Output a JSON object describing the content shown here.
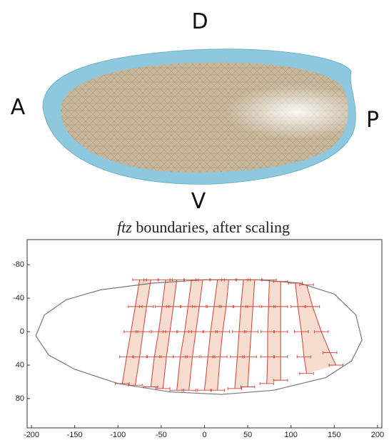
{
  "figure_labels": {
    "top": "D",
    "left": "A",
    "right": "P",
    "bottom": "V"
  },
  "chart_data": {
    "type": "boundaries",
    "title_italic": "ftz",
    "title_rest": " boundaries, after scaling",
    "xlim": [
      -205,
      205
    ],
    "ylim": [
      -110,
      115
    ],
    "y_inverted": true,
    "xticks": [
      -200,
      -150,
      -100,
      -50,
      0,
      50,
      100,
      150,
      200
    ],
    "yticks": [
      -80,
      -40,
      0,
      40,
      80
    ],
    "outline": {
      "color": "#777777",
      "x": [
        -195,
        -185,
        -160,
        -120,
        -60,
        0,
        60,
        110,
        150,
        175,
        182,
        170,
        140,
        80,
        20,
        -40,
        -100,
        -150,
        -180,
        -195
      ],
      "y": [
        5,
        -20,
        -38,
        -50,
        -58,
        -62,
        -62,
        -58,
        -45,
        -20,
        10,
        35,
        55,
        70,
        75,
        72,
        62,
        45,
        28,
        5
      ]
    },
    "color": "#d04038",
    "shade": "#f6ddcf",
    "xerr": 8,
    "series": [
      {
        "x": [
          -75,
          -80,
          -85,
          -90,
          -95
        ],
        "y": [
          -62,
          -30,
          0,
          30,
          62
        ]
      },
      {
        "x": [
          -62,
          -67,
          -71,
          -75,
          -80
        ],
        "y": [
          -62,
          -30,
          0,
          30,
          64
        ]
      },
      {
        "x": [
          -45,
          -49,
          -53,
          -58,
          -62
        ],
        "y": [
          -62,
          -30,
          0,
          30,
          66
        ]
      },
      {
        "x": [
          -32,
          -36,
          -40,
          -44,
          -48
        ],
        "y": [
          -62,
          -30,
          0,
          30,
          68
        ]
      },
      {
        "x": [
          -15,
          -19,
          -23,
          -28,
          -32
        ],
        "y": [
          -62,
          -30,
          0,
          30,
          70
        ]
      },
      {
        "x": [
          -2,
          -6,
          -10,
          -14,
          -18
        ],
        "y": [
          -62,
          -30,
          0,
          30,
          70
        ]
      },
      {
        "x": [
          15,
          11,
          7,
          4,
          0
        ],
        "y": [
          -62,
          -30,
          0,
          30,
          70
        ]
      },
      {
        "x": [
          28,
          25,
          21,
          18,
          15
        ],
        "y": [
          -62,
          -30,
          0,
          30,
          70
        ]
      },
      {
        "x": [
          45,
          42,
          40,
          38,
          35
        ],
        "y": [
          -62,
          -30,
          0,
          30,
          68
        ]
      },
      {
        "x": [
          58,
          56,
          54,
          52,
          50
        ],
        "y": [
          -62,
          -30,
          0,
          30,
          66
        ]
      },
      {
        "x": [
          75,
          74,
          73,
          73,
          72
        ],
        "y": [
          -62,
          -30,
          0,
          30,
          62
        ]
      },
      {
        "x": [
          88,
          88,
          88,
          88,
          88
        ],
        "y": [
          -60,
          -30,
          0,
          30,
          58
        ]
      },
      {
        "x": [
          105,
          108,
          112,
          115,
          118
        ],
        "y": [
          -58,
          -30,
          0,
          30,
          50
        ]
      },
      {
        "x": [
          118,
          125,
          135,
          145,
          152
        ],
        "y": [
          -56,
          -30,
          0,
          25,
          40
        ]
      }
    ]
  }
}
